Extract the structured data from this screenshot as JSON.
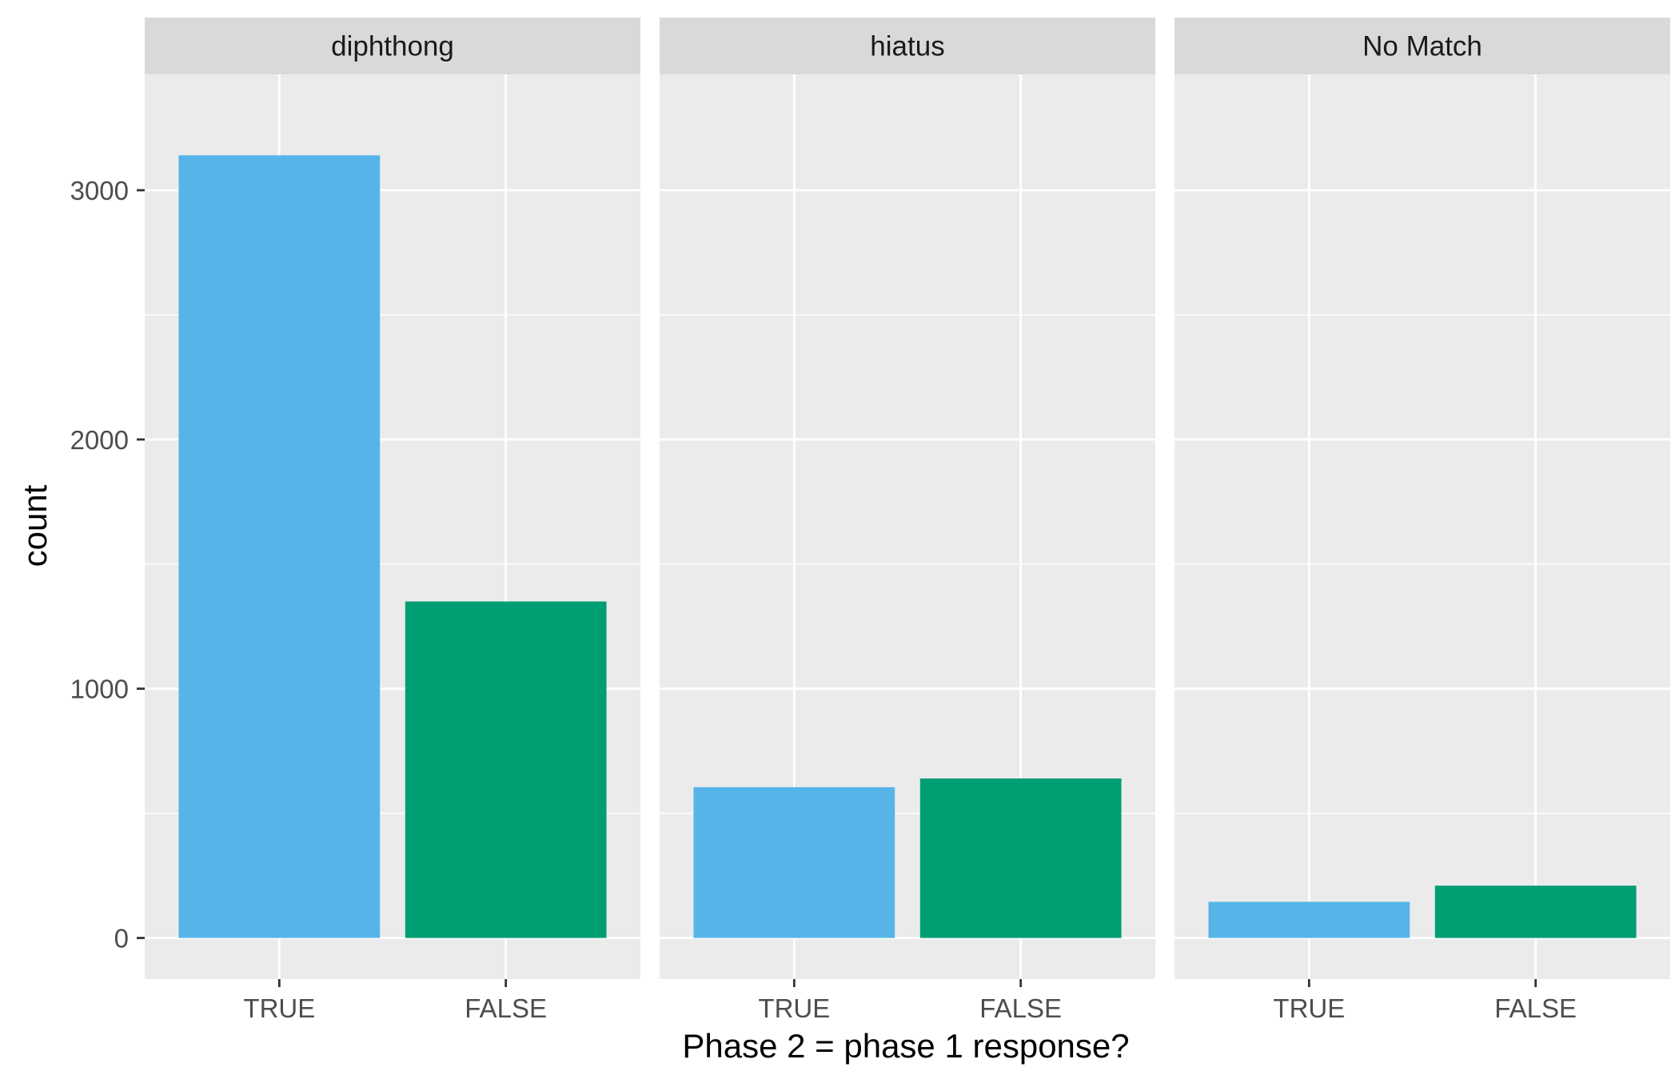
{
  "chart_data": {
    "type": "bar",
    "facet_by": "panel",
    "panels": [
      {
        "name": "diphthong",
        "categories": [
          "TRUE",
          "FALSE"
        ],
        "values": [
          3140,
          1350
        ]
      },
      {
        "name": "hiatus",
        "categories": [
          "TRUE",
          "FALSE"
        ],
        "values": [
          605,
          640
        ]
      },
      {
        "name": "No Match",
        "categories": [
          "TRUE",
          "FALSE"
        ],
        "values": [
          145,
          210
        ]
      }
    ],
    "xlabel": "Phase 2 = phase 1 response?",
    "ylabel": "count",
    "ylim": [
      -165,
      3465
    ],
    "yticks": [
      0,
      1000,
      2000,
      3000
    ],
    "yticklabels": [
      "0",
      "1000",
      "2000",
      "3000"
    ],
    "grid": true,
    "legend": "none",
    "colors": {
      "TRUE": "#56B4E9",
      "FALSE": "#009E73",
      "panel_background": "#EBEBEB",
      "strip_background": "#D9D9D9",
      "grid": "#FFFFFF"
    }
  }
}
